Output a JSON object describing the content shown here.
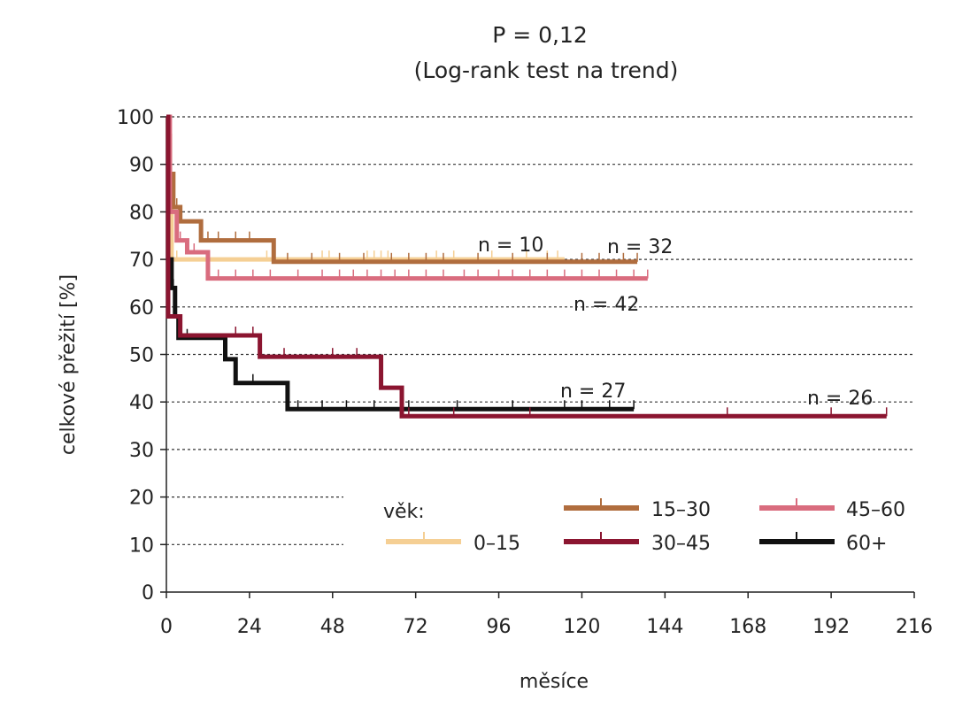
{
  "chart_data": {
    "type": "line",
    "title": "P = 0,12",
    "subtitle": "(Log-rank test na trend)",
    "xlabel": "měsíce",
    "ylabel": "celkové přežití [%]",
    "xlim": [
      0,
      216
    ],
    "ylim": [
      0,
      100
    ],
    "xticks": [
      "0",
      "24",
      "48",
      "72",
      "96",
      "120",
      "144",
      "168",
      "192",
      "216"
    ],
    "yticks": [
      "0",
      "10",
      "20",
      "30",
      "40",
      "50",
      "60",
      "70",
      "80",
      "90",
      "100"
    ],
    "grid": "horizontal dotted",
    "legend": {
      "title": "věk:",
      "placement": "bottom-center"
    },
    "series": [
      {
        "name": "0–15",
        "color": "#f5cf94",
        "n_label": "n = 10",
        "steps": [
          [
            0,
            100
          ],
          [
            0.5,
            94
          ],
          [
            1,
            88
          ],
          [
            1.5,
            70
          ],
          [
            115,
            70
          ]
        ],
        "censored": [
          3,
          29,
          45,
          47,
          58,
          60,
          62,
          64,
          78,
          83,
          94,
          104,
          110,
          113
        ]
      },
      {
        "name": "15–30",
        "color": "#b06d3e",
        "n_label": "n = 32",
        "steps": [
          [
            0,
            100
          ],
          [
            0.5,
            96
          ],
          [
            1,
            88
          ],
          [
            2,
            81
          ],
          [
            4,
            78
          ],
          [
            10,
            74
          ],
          [
            31,
            69.5
          ],
          [
            136,
            69.5
          ]
        ],
        "censored": [
          3,
          12,
          15,
          20,
          24,
          35,
          42,
          50,
          57,
          65,
          70,
          75,
          80,
          90,
          100,
          110,
          120,
          125,
          132,
          136
        ]
      },
      {
        "name": "30–45",
        "color": "#8b1530",
        "n_label": "n = 26",
        "steps": [
          [
            0,
            100
          ],
          [
            0.5,
            58
          ],
          [
            4,
            54
          ],
          [
            27,
            49.5
          ],
          [
            62,
            43
          ],
          [
            68,
            37
          ],
          [
            208,
            37
          ]
        ],
        "censored": [
          20,
          25,
          34,
          48,
          55,
          70,
          83,
          105,
          162,
          192,
          208
        ]
      },
      {
        "name": "45–60",
        "color": "#d96c7e",
        "n_label": "n = 42",
        "steps": [
          [
            0,
            100
          ],
          [
            1,
            80
          ],
          [
            3,
            74
          ],
          [
            6,
            71.5
          ],
          [
            12,
            66
          ],
          [
            139,
            66
          ]
        ],
        "censored": [
          4,
          8,
          15,
          20,
          25,
          30,
          38,
          45,
          50,
          54,
          58,
          62,
          66,
          70,
          75,
          80,
          86,
          90,
          96,
          100,
          105,
          110,
          115,
          120,
          125,
          130,
          135,
          139
        ]
      },
      {
        "name": "60+",
        "color": "#111111",
        "n_label": "n = 27",
        "steps": [
          [
            0,
            100
          ],
          [
            0.5,
            70
          ],
          [
            1.5,
            64
          ],
          [
            2.5,
            58
          ],
          [
            3.5,
            53.5
          ],
          [
            17,
            49
          ],
          [
            20,
            44
          ],
          [
            35,
            38.5
          ],
          [
            135,
            38.5
          ]
        ],
        "censored": [
          2,
          4,
          6,
          25,
          38,
          45,
          52,
          60,
          70,
          84,
          100,
          115,
          120,
          128,
          135
        ]
      }
    ]
  }
}
